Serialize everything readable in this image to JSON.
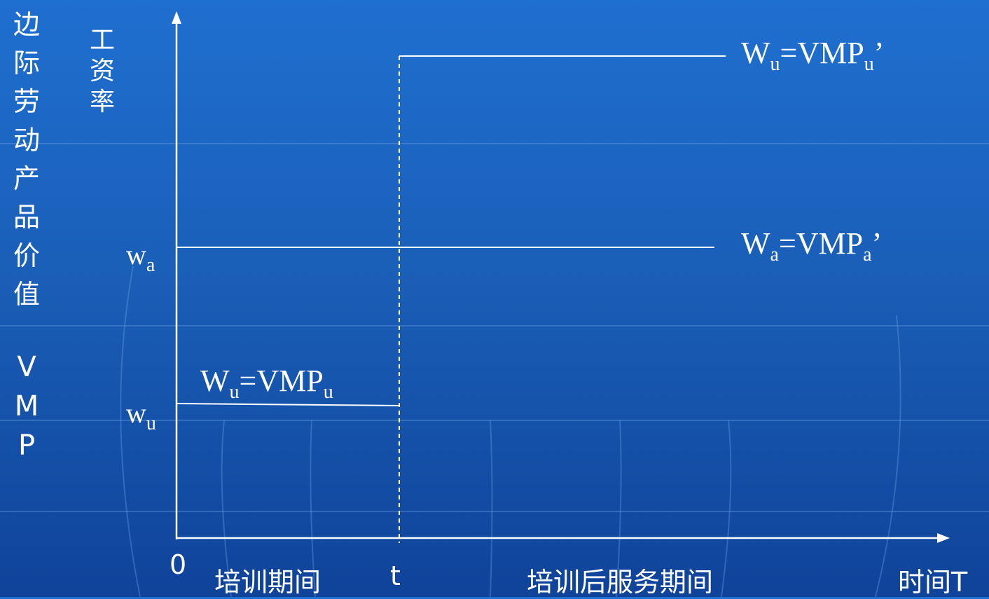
{
  "vertical_title": [
    "边",
    "际",
    "劳",
    "动",
    "产",
    "品",
    "价",
    "值"
  ],
  "vertical_abbr": [
    "V",
    "M",
    "P"
  ],
  "y_axis_label": [
    "工",
    "资",
    "率"
  ],
  "y_ticks": {
    "wa": {
      "main": "w",
      "sub": "a"
    },
    "wu": {
      "main": "w",
      "sub": "u"
    }
  },
  "x_labels": {
    "origin": "0",
    "training_period": "培训期间",
    "t": "t",
    "after_period": "培训后服务期间",
    "time": "时间T"
  },
  "line_labels": {
    "top": {
      "w": "W",
      "w_sub": "u",
      "eq": "=VMP",
      "v_sub": "u",
      "prime": "’"
    },
    "mid": {
      "w": "W",
      "w_sub": "a",
      "eq": "=VMP",
      "v_sub": "a",
      "prime": "’"
    },
    "low": {
      "w": "W",
      "w_sub": "u",
      "eq": "=VMP",
      "v_sub": "u"
    }
  },
  "colors": {
    "background": "#1a5fb8",
    "ink": "#ffffff"
  }
}
